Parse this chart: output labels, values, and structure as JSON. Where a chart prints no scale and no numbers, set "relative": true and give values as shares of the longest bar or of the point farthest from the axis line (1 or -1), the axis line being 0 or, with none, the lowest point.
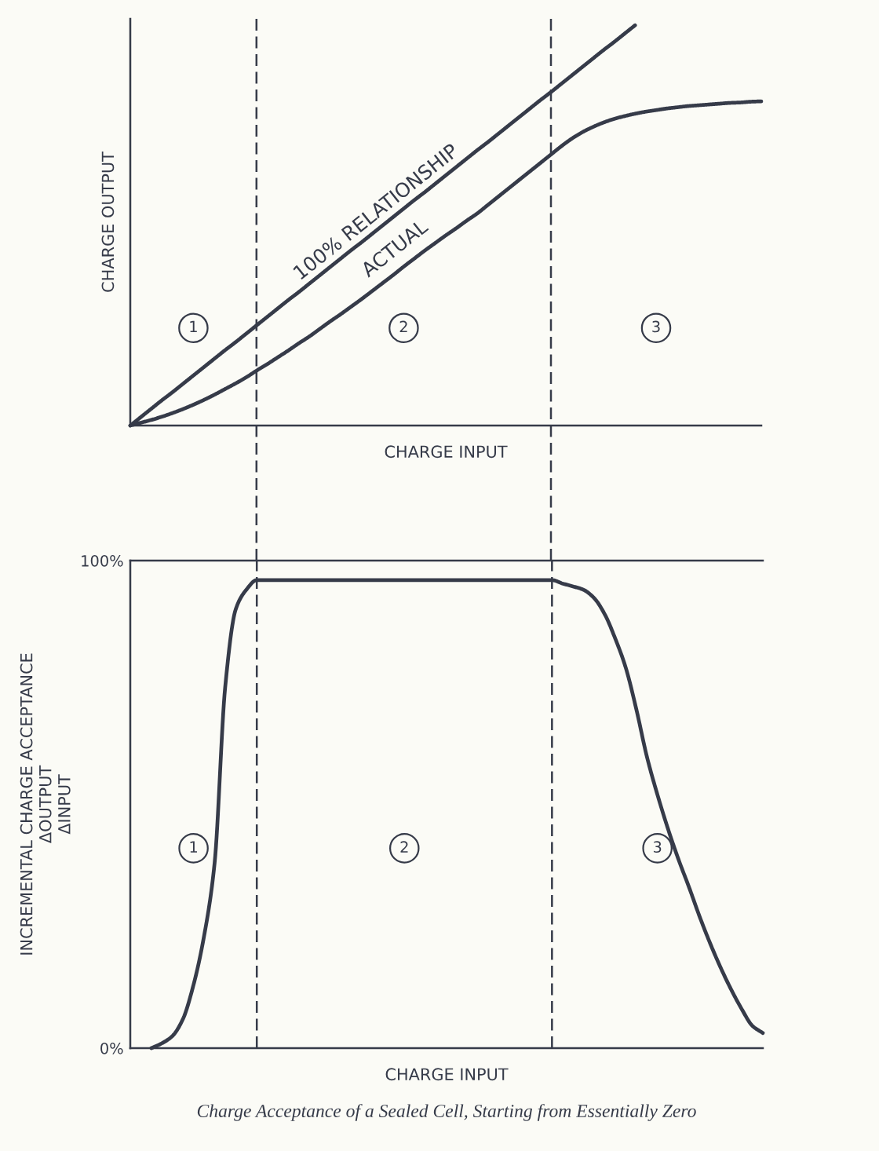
{
  "chart_data": [
    {
      "type": "line",
      "relative": true,
      "xlabel": "CHARGE INPUT",
      "ylabel": "CHARGE OUTPUT",
      "categories": [
        null,
        null,
        null,
        null,
        null,
        null,
        null,
        null,
        null,
        null,
        null,
        null,
        null,
        null,
        null,
        null,
        null,
        null,
        null,
        null,
        null,
        null,
        null,
        null,
        null,
        null,
        null,
        null,
        null,
        null,
        null,
        null,
        null,
        null,
        null,
        null,
        null,
        null,
        null,
        null,
        null,
        null,
        null,
        null,
        null,
        null,
        null,
        null,
        null,
        null,
        null,
        null,
        null,
        null,
        null,
        null,
        null,
        null,
        null,
        null,
        null
      ],
      "series": [
        {
          "name": "100% RELATIONSHIP",
          "color": "#363b49",
          "values": [
            0,
            0.021,
            0.042,
            0.063,
            0.083,
            0.104,
            0.125,
            0.146,
            0.167,
            0.188,
            0.208,
            0.229,
            0.25,
            0.271,
            0.292,
            0.313,
            0.333,
            0.354,
            0.375,
            0.396,
            0.417,
            0.438,
            0.458,
            0.479,
            0.5,
            0.521,
            0.542,
            0.563,
            0.583,
            0.604,
            0.625,
            0.646,
            0.667,
            0.688,
            0.708,
            0.729,
            0.75,
            0.771,
            0.792,
            0.813,
            0.833,
            0.854,
            0.875,
            0.896,
            0.917,
            0.938,
            0.958,
            0.979,
            1,
            null,
            null,
            null,
            null,
            null,
            null,
            null,
            null,
            null,
            null,
            null,
            null
          ]
        },
        {
          "name": "ACTUAL",
          "color": "#363b49",
          "values": [
            0,
            0.007,
            0.014,
            0.022,
            0.031,
            0.041,
            0.052,
            0.064,
            0.077,
            0.091,
            0.105,
            0.12,
            0.137,
            0.153,
            0.17,
            0.187,
            0.205,
            0.222,
            0.241,
            0.26,
            0.278,
            0.297,
            0.316,
            0.336,
            0.356,
            0.376,
            0.397,
            0.417,
            0.437,
            0.456,
            0.475,
            0.493,
            0.512,
            0.53,
            0.551,
            0.572,
            0.593,
            0.614,
            0.635,
            0.656,
            0.677,
            0.698,
            0.717,
            0.733,
            0.746,
            0.757,
            0.766,
            0.773,
            0.779,
            0.784,
            0.788,
            0.792,
            0.795,
            0.798,
            0.8,
            0.802,
            0.804,
            0.806,
            0.807,
            0.809,
            0.81
          ]
        }
      ],
      "annotations": [
        "1",
        "2",
        "3"
      ]
    },
    {
      "type": "line",
      "xlabel": "CHARGE INPUT",
      "ylabel": "INCREMENTAL CHARGE ACCEPTANCE\nΔOUTPUT\nΔINPUT",
      "categories": [
        null,
        null,
        null,
        null,
        null,
        null,
        null,
        null,
        null,
        null,
        null,
        null,
        null,
        null,
        null,
        null,
        null,
        null,
        null,
        null,
        null,
        null,
        null,
        null,
        null,
        null,
        null,
        null,
        null,
        null,
        null,
        null,
        null,
        null,
        null,
        null,
        null,
        null,
        null,
        null,
        null,
        null,
        null,
        null,
        null,
        null,
        null,
        null,
        null,
        null,
        null,
        null,
        null,
        null,
        null,
        null,
        null,
        null,
        null,
        null,
        null
      ],
      "series": [
        {
          "color": "#363b49",
          "values": [
            null,
            null,
            0,
            1,
            2.5,
            6,
            13,
            23,
            38,
            74,
            90,
            94,
            96,
            96,
            96,
            96,
            96,
            96,
            96,
            96,
            96,
            96,
            96,
            96,
            96,
            96,
            96,
            96,
            96,
            96,
            96,
            96,
            96,
            96,
            96,
            96,
            96,
            96,
            96,
            96,
            96,
            95.3,
            94.7,
            94,
            92.3,
            89,
            84,
            78,
            69.5,
            59.8,
            52,
            45,
            38.7,
            33,
            27,
            21.5,
            16.5,
            12,
            8,
            4.6,
            3.1
          ]
        }
      ],
      "ylim": [
        0,
        100
      ],
      "yticks": [
        {
          "value": 0,
          "label": "0%"
        },
        {
          "value": 100,
          "label": "100%"
        }
      ],
      "ref_lines": [
        {
          "axis": "y",
          "value": 100,
          "line_style": "solid",
          "color": "#363b49"
        }
      ],
      "annotations": [
        "1",
        "2",
        "3",
        "Charge Acceptance of a Sealed Cell, Starting from Essentially Zero"
      ]
    }
  ]
}
